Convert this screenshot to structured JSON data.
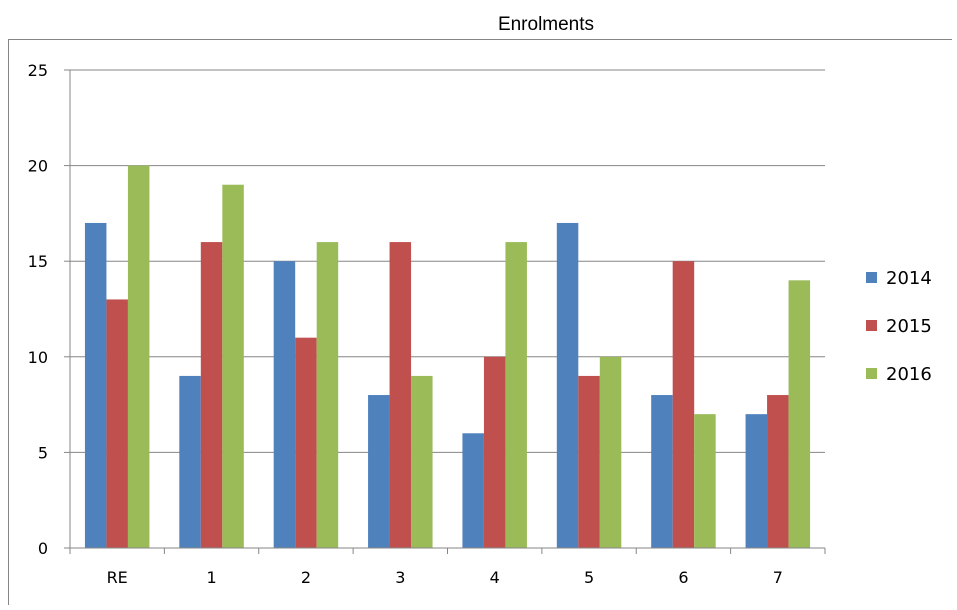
{
  "chart_data": {
    "type": "bar",
    "title": "Enrolments",
    "xlabel": "",
    "ylabel": "",
    "categories": [
      "RE",
      "1",
      "2",
      "3",
      "4",
      "5",
      "6",
      "7"
    ],
    "series": [
      {
        "name": "2014",
        "color": "#4F81BD",
        "values": [
          17,
          9,
          15,
          8,
          6,
          17,
          8,
          7
        ]
      },
      {
        "name": "2015",
        "color": "#C0504D",
        "values": [
          13,
          16,
          11,
          16,
          10,
          9,
          15,
          8
        ]
      },
      {
        "name": "2016",
        "color": "#9BBB59",
        "values": [
          20,
          19,
          16,
          9,
          16,
          10,
          7,
          14
        ]
      }
    ],
    "ylim": [
      0,
      25
    ],
    "yticks": [
      "0",
      "5",
      "10",
      "15",
      "20",
      "25"
    ],
    "grid": true,
    "legend": "right"
  }
}
